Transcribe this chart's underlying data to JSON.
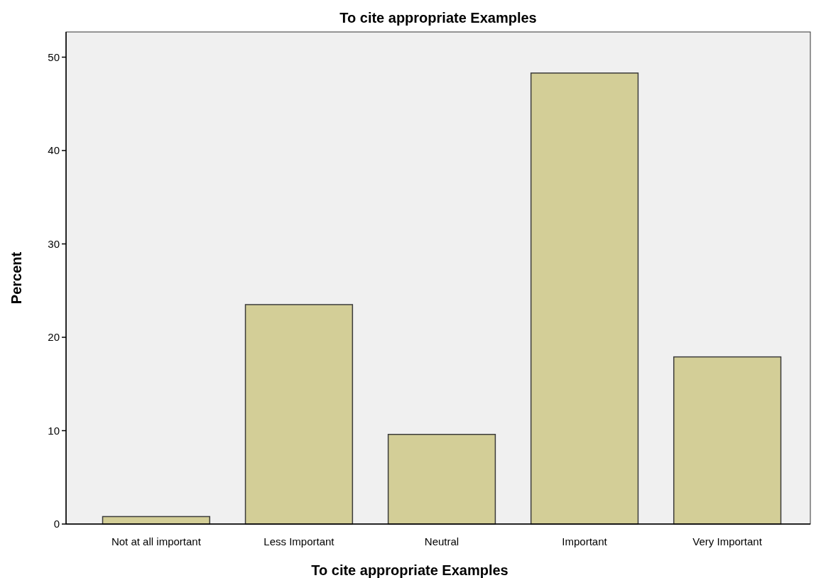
{
  "chart_data": {
    "type": "bar",
    "title": "To cite appropriate Examples",
    "xlabel": "To cite appropriate Examples",
    "ylabel": "Percent",
    "categories": [
      "Not at all important",
      "Less Important",
      "Neutral",
      "Important",
      "Very Important"
    ],
    "values": [
      0.8,
      23.5,
      9.6,
      48.3,
      17.9
    ],
    "color": "#d3ce97",
    "ylim": [
      0,
      52.7
    ],
    "yticks": [
      0,
      10,
      20,
      30,
      40,
      50
    ],
    "grid": false
  }
}
